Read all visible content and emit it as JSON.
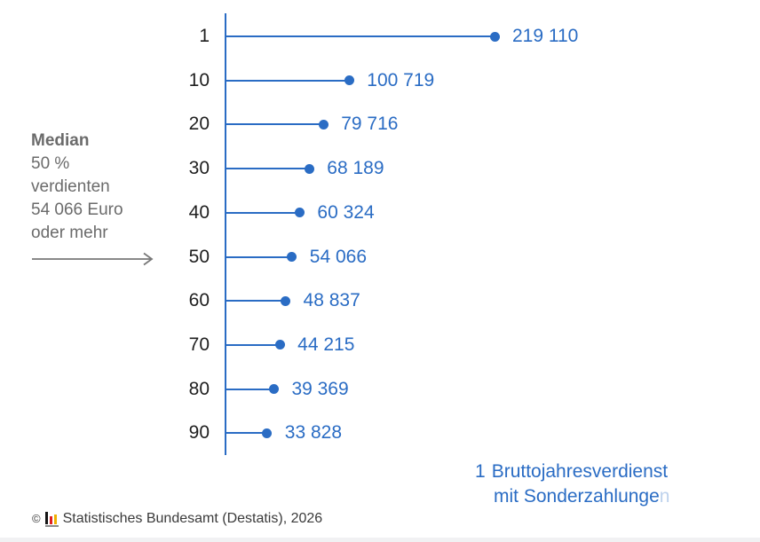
{
  "chart_data": {
    "type": "bar",
    "variant": "horizontal-lollipop",
    "orientation": "horizontal",
    "title": "",
    "categories": [
      "1",
      "10",
      "20",
      "30",
      "40",
      "50",
      "60",
      "70",
      "80",
      "90"
    ],
    "values": [
      219110,
      100719,
      79716,
      68189,
      60324,
      54066,
      48837,
      44215,
      39369,
      33828
    ],
    "value_labels": [
      "219 110",
      "100 719",
      "79 716",
      "68 189",
      "60 324",
      "54 066",
      "48 837",
      "44 215",
      "39 369",
      "33 828"
    ],
    "value_axis_range": [
      0,
      230000
    ],
    "grid": false,
    "legend": false
  },
  "annotation": {
    "title": "Median",
    "lines": [
      "50 %",
      "verdienten",
      "54 066 Euro",
      "oder mehr"
    ],
    "arrow_icon": "right-arrow"
  },
  "footnote": {
    "marker": "1",
    "line1": "Bruttojahresverdienst",
    "line2": "mit Sonderzahlunge",
    "line2_clipped_char": "n"
  },
  "footer": {
    "copyright_symbol": "©",
    "text": "Statistisches Bundesamt (Destatis), 2026",
    "logo_icon": "destatis-bar-chart-icon"
  },
  "colors": {
    "accent_blue": "#2a6cc4",
    "category_text": "#1f1f1f",
    "annotation_gray": "#6b6b6b",
    "arrow_gray": "#787878",
    "copyright_text": "#3a3a3a",
    "logo_black": "#151515",
    "logo_red": "#e02020",
    "logo_gold": "#efb000",
    "logo_underline": "#8c8c8c",
    "page_edge": "#f1f1f3"
  }
}
